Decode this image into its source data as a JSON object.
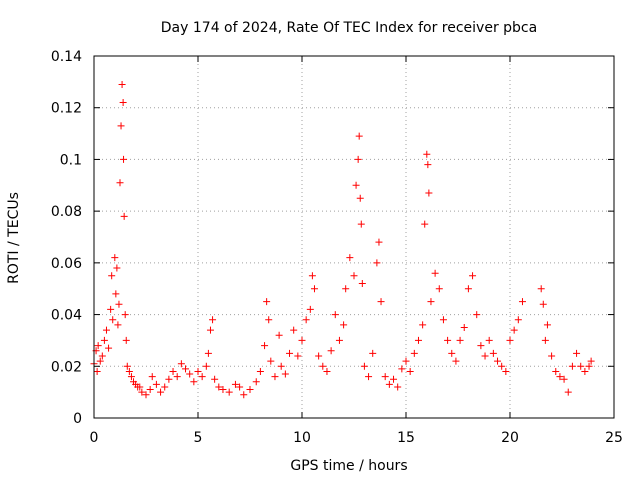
{
  "chart_data": {
    "type": "scatter",
    "title": "Day 174 of 2024, Rate Of TEC Index for receiver pbca",
    "xlabel": "GPS time / hours",
    "ylabel": "ROTI / TECUs",
    "xlim": [
      0,
      25
    ],
    "ylim": [
      0,
      0.14
    ],
    "x_ticks": [
      0,
      5,
      10,
      15,
      20,
      25
    ],
    "x_tick_labels": [
      "0",
      "5",
      "10",
      "15",
      "20",
      "25"
    ],
    "y_ticks": [
      0,
      0.02,
      0.04,
      0.06,
      0.08,
      0.1,
      0.12,
      0.14
    ],
    "y_tick_labels": [
      "0",
      "0.02",
      "0.04",
      "0.06",
      "0.08",
      "0.1",
      "0.12",
      "0.14"
    ],
    "grid": true,
    "marker": "+",
    "series": [
      {
        "name": "ROTI",
        "color": "#ff0000",
        "points": [
          [
            0.0,
            0.021
          ],
          [
            0.1,
            0.026
          ],
          [
            0.15,
            0.018
          ],
          [
            0.2,
            0.028
          ],
          [
            0.3,
            0.022
          ],
          [
            0.4,
            0.024
          ],
          [
            0.5,
            0.03
          ],
          [
            0.6,
            0.034
          ],
          [
            0.7,
            0.027
          ],
          [
            0.8,
            0.042
          ],
          [
            0.85,
            0.055
          ],
          [
            0.9,
            0.038
          ],
          [
            1.0,
            0.062
          ],
          [
            1.05,
            0.048
          ],
          [
            1.1,
            0.058
          ],
          [
            1.15,
            0.036
          ],
          [
            1.2,
            0.044
          ],
          [
            1.25,
            0.091
          ],
          [
            1.3,
            0.113
          ],
          [
            1.35,
            0.129
          ],
          [
            1.4,
            0.122
          ],
          [
            1.42,
            0.1
          ],
          [
            1.45,
            0.078
          ],
          [
            1.5,
            0.04
          ],
          [
            1.55,
            0.03
          ],
          [
            1.6,
            0.02
          ],
          [
            1.7,
            0.018
          ],
          [
            1.8,
            0.016
          ],
          [
            1.9,
            0.014
          ],
          [
            2.0,
            0.013
          ],
          [
            2.1,
            0.012
          ],
          [
            2.2,
            0.012
          ],
          [
            2.3,
            0.01
          ],
          [
            2.5,
            0.009
          ],
          [
            2.7,
            0.011
          ],
          [
            2.8,
            0.016
          ],
          [
            3.0,
            0.013
          ],
          [
            3.2,
            0.01
          ],
          [
            3.4,
            0.012
          ],
          [
            3.6,
            0.015
          ],
          [
            3.8,
            0.018
          ],
          [
            4.0,
            0.016
          ],
          [
            4.2,
            0.021
          ],
          [
            4.4,
            0.019
          ],
          [
            4.6,
            0.017
          ],
          [
            4.8,
            0.014
          ],
          [
            5.0,
            0.018
          ],
          [
            5.2,
            0.016
          ],
          [
            5.4,
            0.02
          ],
          [
            5.5,
            0.025
          ],
          [
            5.6,
            0.034
          ],
          [
            5.7,
            0.038
          ],
          [
            5.8,
            0.015
          ],
          [
            6.0,
            0.012
          ],
          [
            6.2,
            0.011
          ],
          [
            6.5,
            0.01
          ],
          [
            6.8,
            0.013
          ],
          [
            7.0,
            0.012
          ],
          [
            7.2,
            0.009
          ],
          [
            7.5,
            0.011
          ],
          [
            7.8,
            0.014
          ],
          [
            8.0,
            0.018
          ],
          [
            8.2,
            0.028
          ],
          [
            8.3,
            0.045
          ],
          [
            8.4,
            0.038
          ],
          [
            8.5,
            0.022
          ],
          [
            8.7,
            0.016
          ],
          [
            8.9,
            0.032
          ],
          [
            9.0,
            0.02
          ],
          [
            9.2,
            0.017
          ],
          [
            9.4,
            0.025
          ],
          [
            9.6,
            0.034
          ],
          [
            9.8,
            0.024
          ],
          [
            10.0,
            0.03
          ],
          [
            10.2,
            0.038
          ],
          [
            10.4,
            0.042
          ],
          [
            10.5,
            0.055
          ],
          [
            10.6,
            0.05
          ],
          [
            10.8,
            0.024
          ],
          [
            11.0,
            0.02
          ],
          [
            11.2,
            0.018
          ],
          [
            11.4,
            0.026
          ],
          [
            11.6,
            0.04
          ],
          [
            11.8,
            0.03
          ],
          [
            12.0,
            0.036
          ],
          [
            12.1,
            0.05
          ],
          [
            12.3,
            0.062
          ],
          [
            12.5,
            0.055
          ],
          [
            12.6,
            0.09
          ],
          [
            12.7,
            0.1
          ],
          [
            12.75,
            0.109
          ],
          [
            12.8,
            0.085
          ],
          [
            12.85,
            0.075
          ],
          [
            12.9,
            0.052
          ],
          [
            13.0,
            0.02
          ],
          [
            13.2,
            0.016
          ],
          [
            13.4,
            0.025
          ],
          [
            13.6,
            0.06
          ],
          [
            13.7,
            0.068
          ],
          [
            13.8,
            0.045
          ],
          [
            14.0,
            0.016
          ],
          [
            14.2,
            0.013
          ],
          [
            14.4,
            0.015
          ],
          [
            14.6,
            0.012
          ],
          [
            14.8,
            0.019
          ],
          [
            15.0,
            0.022
          ],
          [
            15.2,
            0.018
          ],
          [
            15.4,
            0.025
          ],
          [
            15.6,
            0.03
          ],
          [
            15.8,
            0.036
          ],
          [
            15.9,
            0.075
          ],
          [
            16.0,
            0.102
          ],
          [
            16.05,
            0.098
          ],
          [
            16.1,
            0.087
          ],
          [
            16.2,
            0.045
          ],
          [
            16.4,
            0.056
          ],
          [
            16.6,
            0.05
          ],
          [
            16.8,
            0.038
          ],
          [
            17.0,
            0.03
          ],
          [
            17.2,
            0.025
          ],
          [
            17.4,
            0.022
          ],
          [
            17.6,
            0.03
          ],
          [
            17.8,
            0.035
          ],
          [
            18.0,
            0.05
          ],
          [
            18.2,
            0.055
          ],
          [
            18.4,
            0.04
          ],
          [
            18.6,
            0.028
          ],
          [
            18.8,
            0.024
          ],
          [
            19.0,
            0.03
          ],
          [
            19.2,
            0.025
          ],
          [
            19.4,
            0.022
          ],
          [
            19.6,
            0.02
          ],
          [
            19.8,
            0.018
          ],
          [
            20.0,
            0.03
          ],
          [
            20.2,
            0.034
          ],
          [
            20.4,
            0.038
          ],
          [
            20.6,
            0.045
          ],
          [
            21.5,
            0.05
          ],
          [
            21.6,
            0.044
          ],
          [
            21.7,
            0.03
          ],
          [
            21.8,
            0.036
          ],
          [
            22.0,
            0.024
          ],
          [
            22.2,
            0.018
          ],
          [
            22.4,
            0.016
          ],
          [
            22.6,
            0.015
          ],
          [
            22.8,
            0.01
          ],
          [
            23.0,
            0.02
          ],
          [
            23.2,
            0.025
          ],
          [
            23.4,
            0.02
          ],
          [
            23.6,
            0.018
          ],
          [
            23.8,
            0.02
          ],
          [
            23.9,
            0.022
          ]
        ]
      }
    ]
  }
}
